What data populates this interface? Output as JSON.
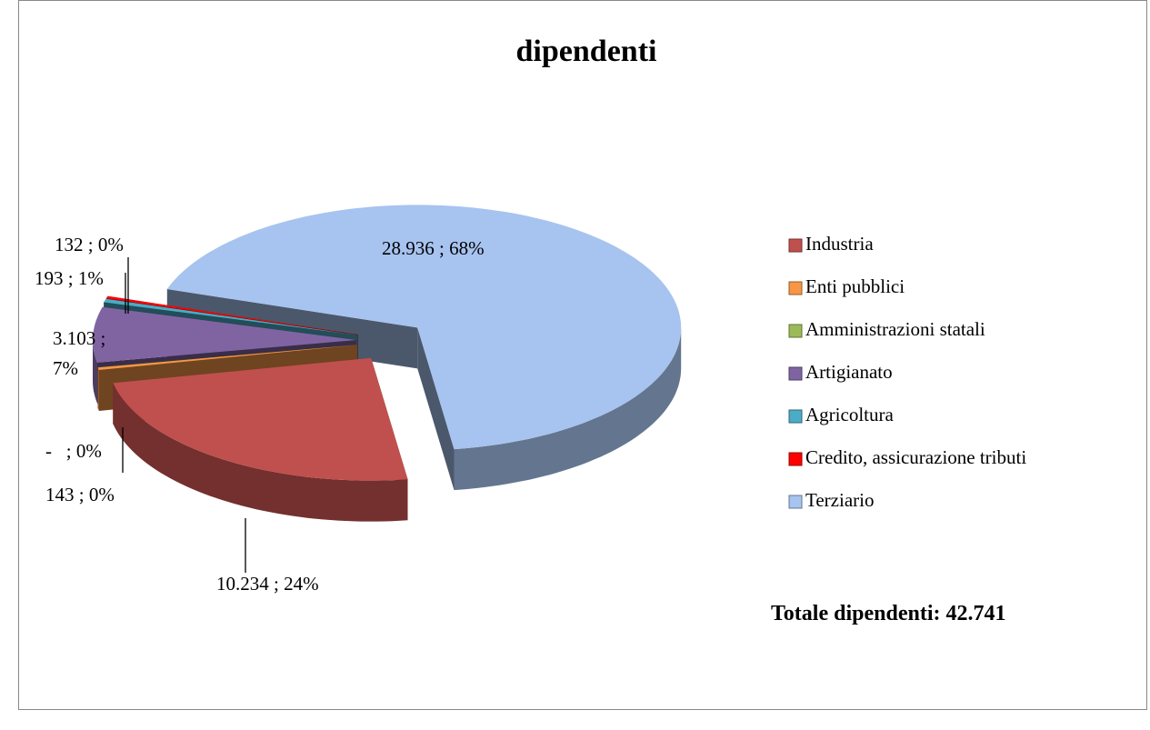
{
  "chart_data": {
    "type": "pie",
    "title": "dipendenti",
    "categories": [
      "Industria",
      "Enti pubblici",
      "Amministrazioni statali",
      "Artigianato",
      "Agricoltura",
      "Credito, assicurazione tributi",
      "Terziario"
    ],
    "values": [
      10234,
      143,
      0,
      3103,
      193,
      132,
      28936
    ],
    "value_labels": [
      "10.234 ; 24%",
      "143 ; 0%",
      "-   ; 0%",
      "3.103 ; 7%",
      "193 ; 1%",
      "132 ; 0%",
      "28.936 ; 68%"
    ],
    "colors": [
      "#c0504d",
      "#f79646",
      "#9bbb59",
      "#8064a2",
      "#4bacc6",
      "#ff0000",
      "#a7c3ef"
    ],
    "legend": "right",
    "annotation": "Totale dipendenti: 42.741"
  }
}
